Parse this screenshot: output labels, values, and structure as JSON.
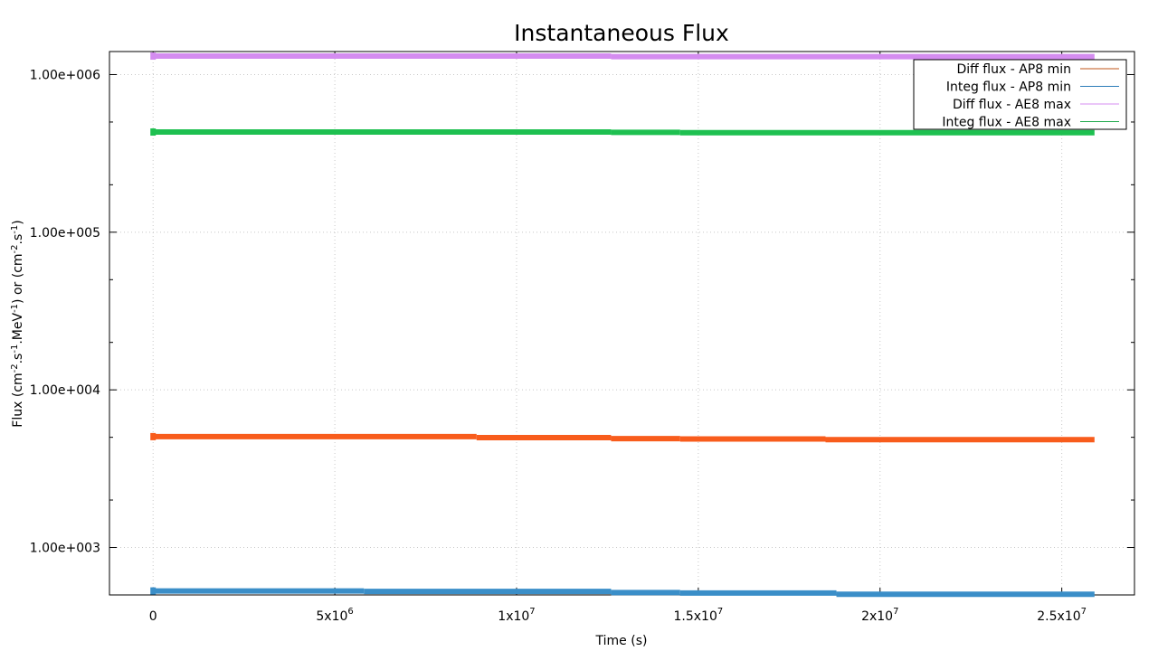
{
  "chart_data": {
    "type": "line",
    "title": "Instantaneous Flux",
    "xlabel": "Time (s)",
    "ylabel": {
      "parts": [
        {
          "t": "Flux (cm"
        },
        {
          "t": "-2",
          "sup": true
        },
        {
          "t": ".s"
        },
        {
          "t": "-1",
          "sup": true
        },
        {
          "t": ".MeV"
        },
        {
          "t": "-1",
          "sup": true
        },
        {
          "t": ") or (cm"
        },
        {
          "t": "-2",
          "sup": true
        },
        {
          "t": ".s"
        },
        {
          "t": "-1",
          "sup": true
        },
        {
          "t": ")"
        }
      ]
    },
    "xlim": [
      -1200000,
      27000000
    ],
    "ylim": [
      500,
      1400000
    ],
    "yscale": "log",
    "grid": true,
    "legend_position": "top-right",
    "x_ticks": [
      {
        "value": 0,
        "base": "0",
        "exp": ""
      },
      {
        "value": 5000000,
        "base": "5x10",
        "exp": "6"
      },
      {
        "value": 10000000,
        "base": "1x10",
        "exp": "7"
      },
      {
        "value": 15000000,
        "base": "1.5x10",
        "exp": "7"
      },
      {
        "value": 20000000,
        "base": "2x10",
        "exp": "7"
      },
      {
        "value": 25000000,
        "base": "2.5x10",
        "exp": "7"
      }
    ],
    "y_ticks": [
      {
        "value": 1000,
        "label": "1.00e+003"
      },
      {
        "value": 10000,
        "label": "1.00e+004"
      },
      {
        "value": 100000,
        "label": "1.00e+005"
      },
      {
        "value": 1000000,
        "label": "1.00e+006"
      }
    ],
    "series": [
      {
        "name": "Diff flux - AP8 min",
        "color": "#f85c1c",
        "legend_color": "#c0561a",
        "x": [
          0,
          8900000,
          12600000,
          14500000,
          18500000,
          25900000
        ],
        "y": [
          5050,
          4980,
          4900,
          4880,
          4830,
          4820
        ]
      },
      {
        "name": "Integ flux - AP8 min",
        "color": "#3a8ec8",
        "legend_color": "#2b7cb8",
        "x": [
          0,
          5800000,
          12600000,
          14500000,
          18800000,
          25900000
        ],
        "y": [
          530,
          526,
          518,
          514,
          505,
          500
        ]
      },
      {
        "name": "Diff flux - AE8 max",
        "color": "#d48cf0",
        "legend_color": "#d48cf0",
        "x": [
          0,
          12600000,
          25900000
        ],
        "y": [
          1310000,
          1300000,
          1290000
        ]
      },
      {
        "name": "Integ flux - AE8 max",
        "color": "#1ec050",
        "legend_color": "#1ea84a",
        "x": [
          0,
          12600000,
          14500000,
          25900000
        ],
        "y": [
          432000,
          430000,
          428000,
          424000
        ]
      }
    ]
  }
}
